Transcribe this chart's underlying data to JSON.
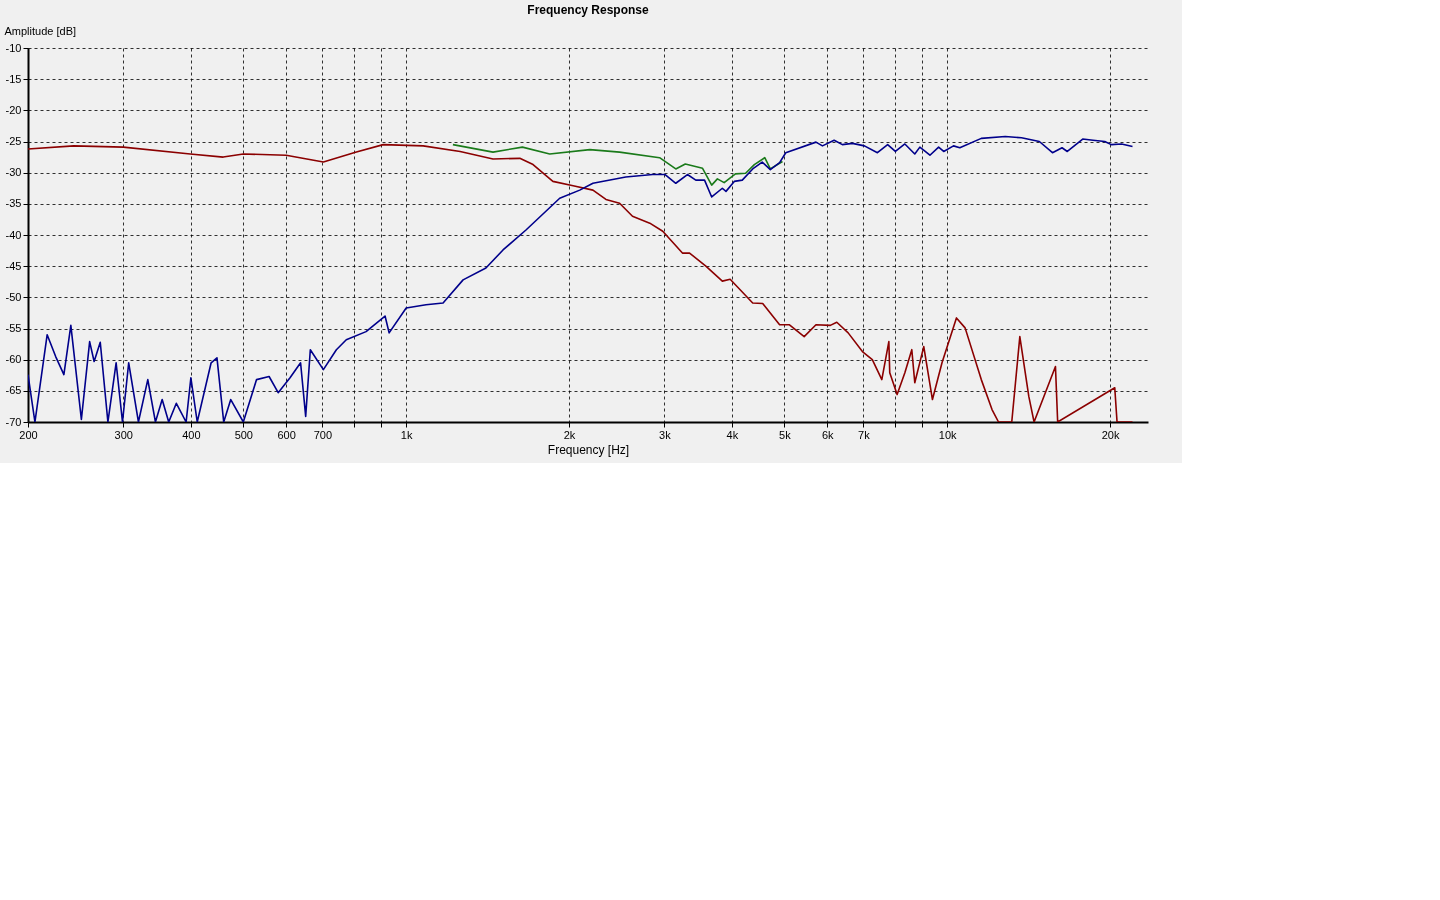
{
  "chart_data": {
    "type": "line",
    "title": "Frequency Response",
    "xlabel": "Frequency [Hz]",
    "ylabel": "Amplitude [dB]",
    "log": "x",
    "grid": true,
    "line_style": "solid",
    "xlim": [
      200,
      23500
    ],
    "ylim": [
      -70,
      -10
    ],
    "xticks": [
      200,
      300,
      400,
      500,
      600,
      700,
      {
        "value": 800,
        "label": null
      },
      {
        "value": 900,
        "label": null
      },
      {
        "value": 1000,
        "label": "1k"
      },
      {
        "value": 2000,
        "label": "2k"
      },
      {
        "value": 3000,
        "label": "3k"
      },
      {
        "value": 4000,
        "label": "4k"
      },
      {
        "value": 5000,
        "label": "5k"
      },
      {
        "value": 6000,
        "label": "6k"
      },
      {
        "value": 7000,
        "label": "7k"
      },
      {
        "value": 8000,
        "label": null
      },
      {
        "value": 9000,
        "label": null
      },
      {
        "value": 10000,
        "label": "10k"
      },
      {
        "value": 20000,
        "label": "20k"
      }
    ],
    "yticks": [
      -10,
      -15,
      -20,
      -25,
      -30,
      -35,
      -40,
      -45,
      -50,
      -55,
      -60,
      -65,
      -70
    ],
    "series": [
      {
        "color": "#1a7a1a",
        "x": [
          1220,
          1447,
          1640,
          1842,
          2185,
          2480,
          2940,
          3150,
          3280,
          3530,
          3670,
          3760,
          3870,
          4060,
          4240,
          4400,
          4600,
          4710,
          4960
        ],
        "values": [
          -25.5,
          -26.7,
          -25.9,
          -27.0,
          -26.3,
          -26.7,
          -27.6,
          -29.4,
          -28.6,
          -29.3,
          -32.0,
          -31.0,
          -31.6,
          -30.2,
          -30.1,
          -28.7,
          -27.6,
          -29.4,
          -28.2
        ]
      },
      {
        "color": "#8b0000",
        "x": [
          200,
          243,
          300,
          399,
          459,
          500,
          600,
          703,
          809,
          907,
          1075,
          1258,
          1447,
          1622,
          1716,
          1867,
          2035,
          2214,
          2340,
          2480,
          2620,
          2820,
          2980,
          3240,
          3340,
          3580,
          3840,
          3970,
          4370,
          4560,
          4900,
          5110,
          5440,
          5720,
          6080,
          6250,
          6560,
          6970,
          7270,
          7570,
          7800,
          7830,
          8080,
          8350,
          8600,
          8710,
          9050,
          9390,
          9780,
          10400,
          10790,
          11560,
          12100,
          12440,
          13160,
          13620,
          14150,
          14470,
          15850,
          16000,
          20400,
          20600,
          22000
        ],
        "values": [
          -26.2,
          -25.7,
          -25.9,
          -27.0,
          -27.5,
          -27.0,
          -27.2,
          -28.3,
          -26.7,
          -25.5,
          -25.7,
          -26.6,
          -27.8,
          -27.7,
          -28.7,
          -31.4,
          -32.1,
          -32.8,
          -34.3,
          -34.9,
          -37.0,
          -38.1,
          -39.4,
          -42.9,
          -42.9,
          -45.0,
          -47.4,
          -47.1,
          -50.9,
          -51.0,
          -54.4,
          -54.4,
          -56.3,
          -54.4,
          -54.5,
          -54.0,
          -55.7,
          -58.7,
          -60.0,
          -63.2,
          -57.1,
          -62.1,
          -65.6,
          -62.1,
          -58.4,
          -63.7,
          -57.9,
          -66.4,
          -60.5,
          -53.3,
          -54.9,
          -63.2,
          -68.0,
          -70,
          -70,
          -56.3,
          -65.9,
          -70,
          -61.1,
          -70,
          -64.5,
          -70,
          -70
        ]
      },
      {
        "color": "#00008b",
        "x": [
          200,
          206,
          217,
          225,
          233,
          240,
          251,
          260,
          265,
          272,
          281,
          291,
          299,
          307,
          320,
          333,
          344,
          354,
          364,
          376,
          392,
          400,
          411,
          436,
          447,
          460,
          474,
          500,
          529,
          558,
          580,
          610,
          638,
          652,
          665,
          703,
          743,
          775,
          843,
          914,
          930,
          1000,
          1088,
          1170,
          1274,
          1404,
          1510,
          1665,
          1922,
          2093,
          2214,
          2546,
          2855,
          3010,
          3150,
          3310,
          3430,
          3560,
          3670,
          3840,
          3900,
          4040,
          4180,
          4370,
          4550,
          4710,
          4900,
          5030,
          5720,
          5880,
          6180,
          6400,
          6680,
          7030,
          7430,
          7760,
          8020,
          8350,
          8710,
          8900,
          9290,
          9640,
          9850,
          10270,
          10550,
          11560,
          12800,
          13720,
          14800,
          15650,
          16300,
          16670,
          17800,
          18600,
          19550,
          20100,
          21000,
          22000
        ],
        "values": [
          -62.4,
          -70,
          -56.0,
          -59.5,
          -62.4,
          -54.5,
          -69.6,
          -57.1,
          -60.3,
          -57.2,
          -70,
          -60.5,
          -70,
          -60.5,
          -70,
          -63.2,
          -70,
          -66.4,
          -70,
          -67.0,
          -70,
          -62.9,
          -70,
          -60.5,
          -59.7,
          -70,
          -66.4,
          -70,
          -63.2,
          -62.7,
          -65.3,
          -62.9,
          -60.5,
          -69.1,
          -58.4,
          -61.6,
          -58.4,
          -56.8,
          -55.5,
          -53.0,
          -55.7,
          -51.7,
          -51.2,
          -50.9,
          -47.2,
          -45.3,
          -42.4,
          -39.2,
          -34.1,
          -32.8,
          -31.7,
          -30.7,
          -30.3,
          -30.3,
          -31.7,
          -30.3,
          -31.2,
          -31.2,
          -33.9,
          -32.5,
          -33.0,
          -31.4,
          -31.2,
          -29.4,
          -28.3,
          -29.5,
          -28.4,
          -26.8,
          -25.1,
          -25.7,
          -24.8,
          -25.5,
          -25.3,
          -25.7,
          -26.8,
          -25.5,
          -26.6,
          -25.4,
          -27.0,
          -25.9,
          -27.2,
          -25.9,
          -26.6,
          -25.7,
          -26.0,
          -24.5,
          -24.2,
          -24.4,
          -25.0,
          -26.8,
          -26.0,
          -26.6,
          -24.6,
          -24.8,
          -25.0,
          -25.5,
          -25.4,
          -25.8
        ]
      }
    ]
  }
}
